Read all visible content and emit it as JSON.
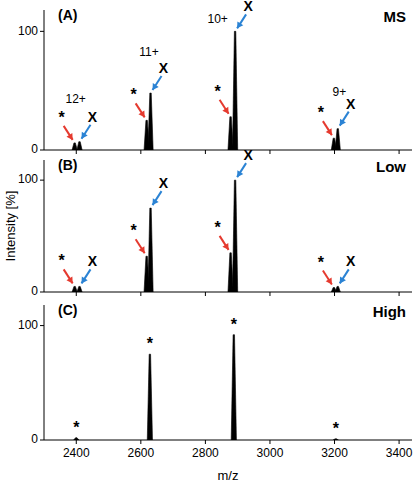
{
  "chart_data": [
    {
      "type": "line",
      "title": "MS",
      "panel_label": "(A)",
      "xlim": [
        2300,
        3440
      ],
      "xticks": [
        2400,
        2600,
        2800,
        3000,
        3200,
        3400
      ],
      "ylim": [
        0,
        118
      ],
      "yticks": [
        0,
        100
      ],
      "tick_labels": "y",
      "series": [
        {
          "name": "*",
          "color": "#e53a2f",
          "marker": "arrow",
          "x": [
            2395,
            2618,
            2878,
            3198
          ],
          "values": [
            6,
            25,
            28,
            10
          ]
        },
        {
          "name": "X",
          "color": "#2b83d4",
          "marker": "arrow",
          "x": [
            2410,
            2630,
            2892,
            3210
          ],
          "values": [
            7,
            48,
            100,
            18
          ]
        }
      ],
      "annotations": [
        {
          "text": "12+",
          "x": 2398,
          "y": 42
        },
        {
          "text": "11+",
          "x": 2625,
          "y": 82
        },
        {
          "text": "10+",
          "x": 2838,
          "y": 110
        },
        {
          "text": "9+",
          "x": 3215,
          "y": 48
        }
      ]
    },
    {
      "type": "line",
      "title": "Low",
      "panel_label": "(B)",
      "y_label": "Intensity [%]",
      "xlim": [
        2300,
        3440
      ],
      "xticks": [
        2400,
        2600,
        2800,
        3000,
        3200,
        3400
      ],
      "ylim": [
        0,
        118
      ],
      "yticks": [
        0,
        100
      ],
      "tick_labels": "y",
      "series": [
        {
          "name": "*",
          "color": "#e53a2f",
          "marker": "arrow",
          "x": [
            2395,
            2618,
            2878,
            3198
          ],
          "values": [
            5,
            32,
            35,
            4
          ]
        },
        {
          "name": "X",
          "color": "#2b83d4",
          "marker": "arrow",
          "x": [
            2410,
            2630,
            2892,
            3210
          ],
          "values": [
            5,
            75,
            100,
            5
          ]
        }
      ]
    },
    {
      "type": "line",
      "title": "High",
      "panel_label": "(C)",
      "x_label": "m/z",
      "xlim": [
        2300,
        3440
      ],
      "xticks": [
        2400,
        2600,
        2800,
        3000,
        3200,
        3400
      ],
      "ylim": [
        0,
        118
      ],
      "yticks": [
        0,
        100
      ],
      "series": [
        {
          "name": "*",
          "color": "#e53a2f",
          "x": [
            2400,
            2628,
            2888,
            3204
          ],
          "values": [
            2,
            75,
            92,
            1
          ]
        }
      ]
    }
  ]
}
